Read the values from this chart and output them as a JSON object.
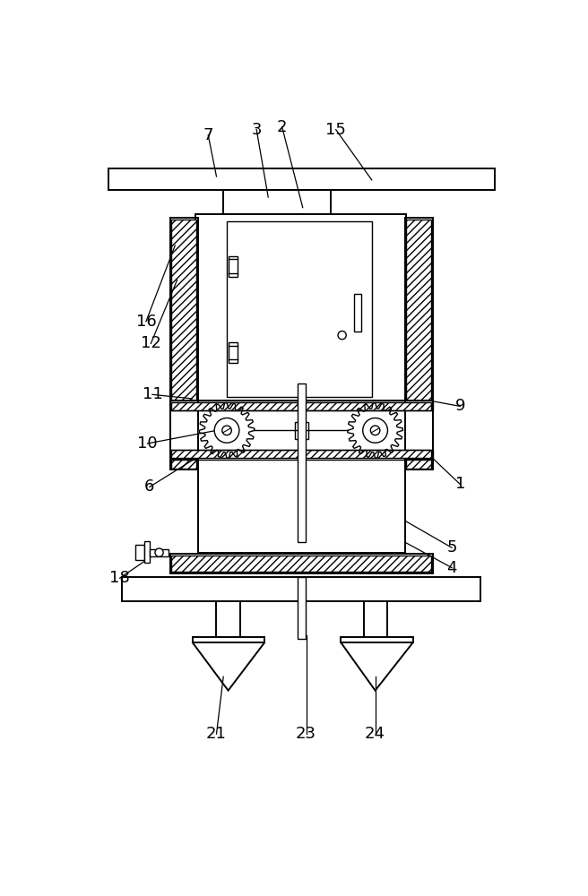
{
  "bg_color": "#ffffff",
  "lw_thin": 1.0,
  "lw_med": 1.4,
  "lw_thick": 1.8,
  "label_fs": 13,
  "labels": [
    "7",
    "3",
    "2",
    "15",
    "16",
    "12",
    "11",
    "10",
    "6",
    "9",
    "1",
    "5",
    "4",
    "18",
    "21",
    "23",
    "24"
  ]
}
